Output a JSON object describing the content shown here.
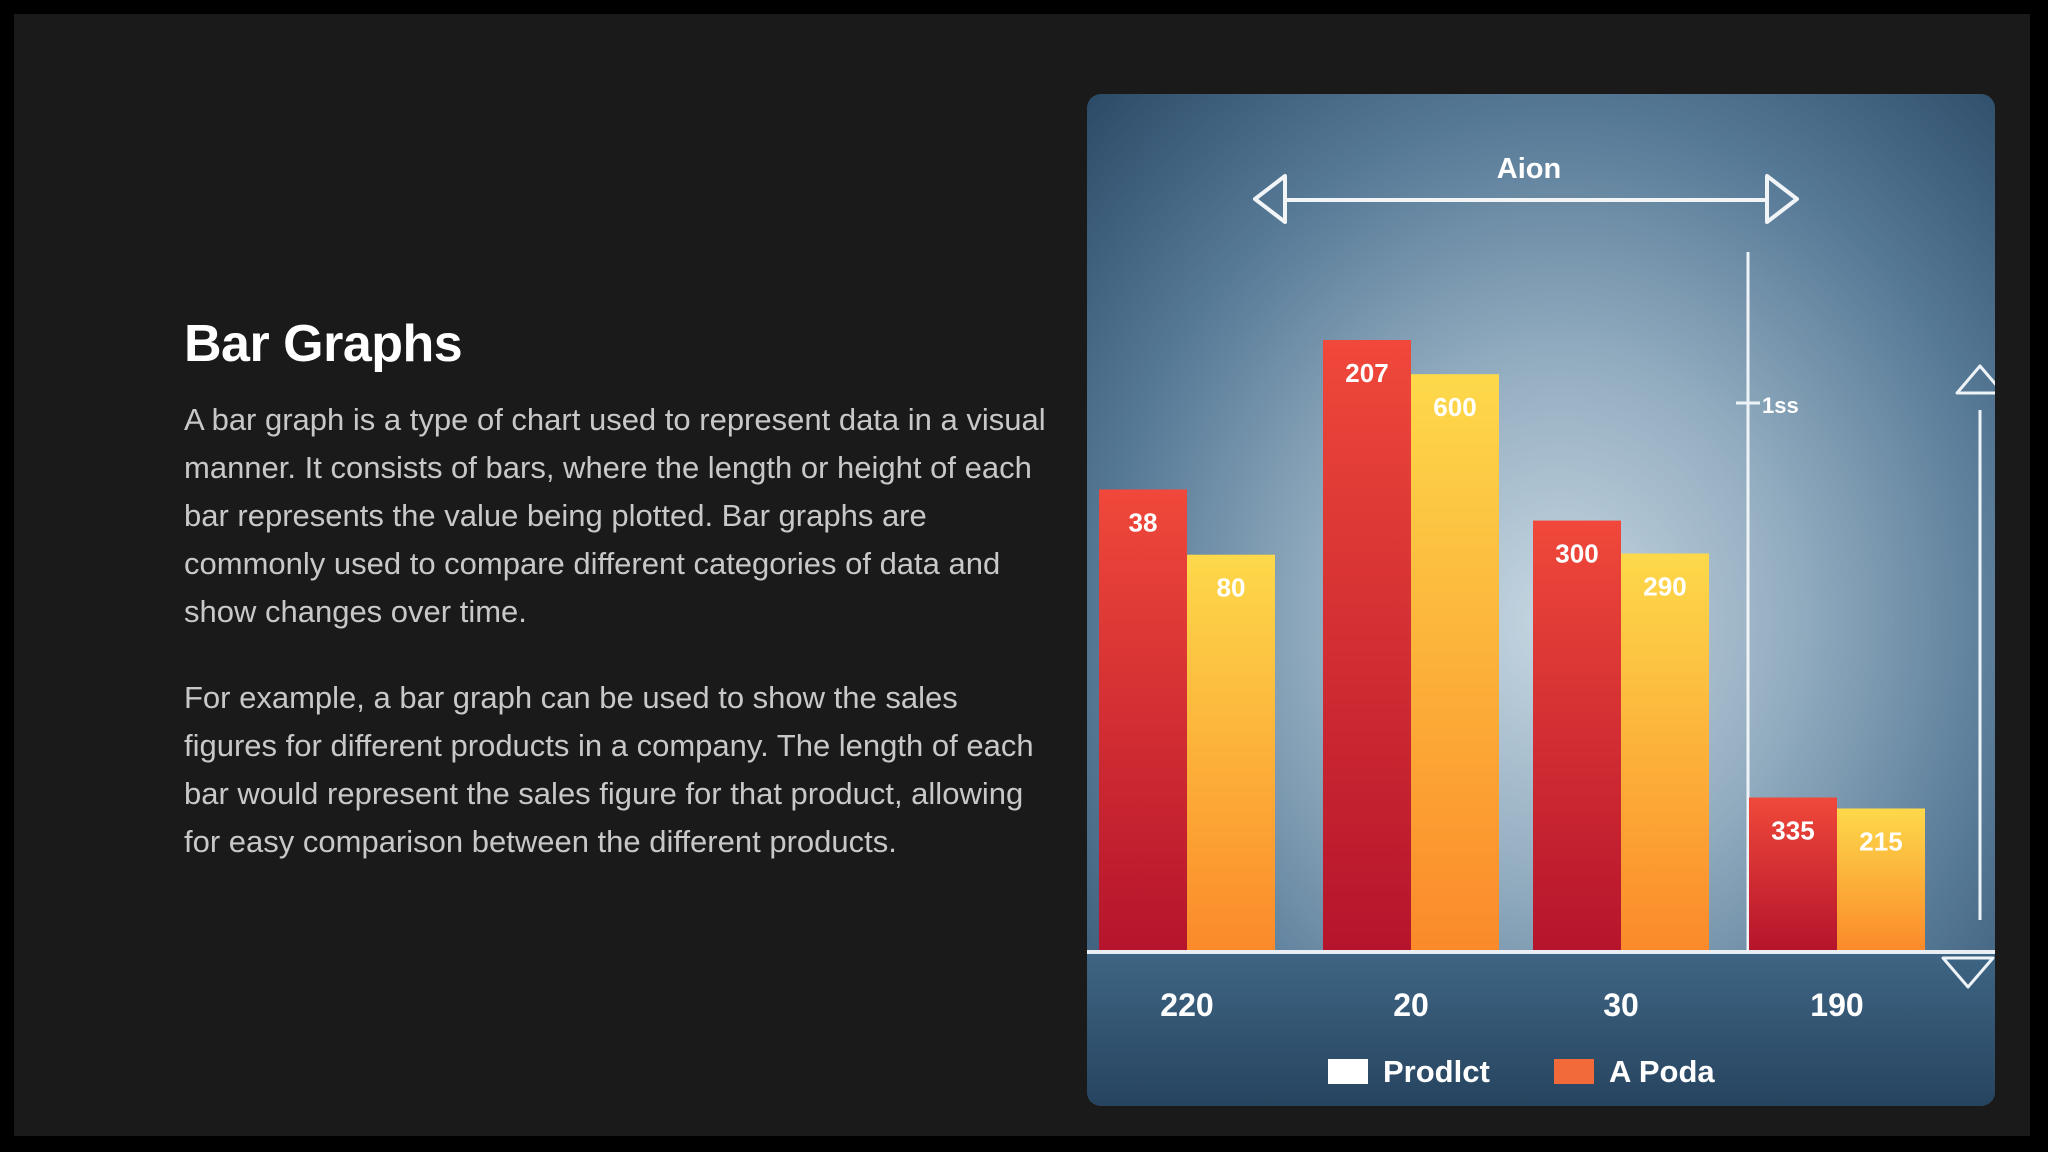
{
  "slide": {
    "title": "Bar Graphs",
    "paragraphs": [
      "A bar graph is a type of chart used to represent data in a visual manner. It consists of bars, where the length or height of each bar represents the value being plotted. Bar graphs are commonly used to compare different categories of data and show changes over time.",
      "For example, a bar graph can be used to show the sales figures for different products in a company. The length of each bar would represent the sales figure for that product, allowing for easy comparison between the different products."
    ]
  },
  "image": {
    "header_label": "Aion",
    "side_label": "1ss",
    "categories": [
      "220",
      "20",
      "30",
      "190"
    ],
    "bar_labels": [
      [
        "38",
        "80"
      ],
      [
        "207",
        "600"
      ],
      [
        "300",
        "290"
      ],
      [
        "335",
        "215"
      ]
    ],
    "bar_levels": [
      [
        0.755,
        0.648
      ],
      [
        1.0,
        0.944
      ],
      [
        0.704,
        0.65
      ],
      [
        0.25,
        0.232
      ]
    ],
    "legend": [
      "Prodlct",
      "A Poda"
    ],
    "colors": {
      "red_top": "#f0483a",
      "red_bottom": "#b5142c",
      "yellow_top": "#fdd94a",
      "yellow_bottom": "#fb8a2a",
      "legend_swatch_1": "#ffffff",
      "legend_swatch_2": "#f26a3a"
    }
  }
}
